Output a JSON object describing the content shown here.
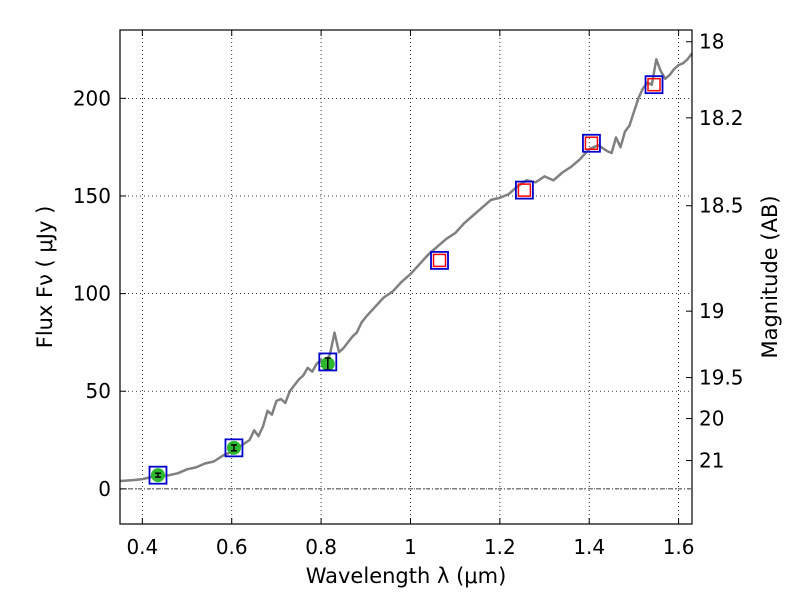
{
  "chart_data": {
    "type": "line",
    "xlabel": "Wavelength  λ (μm)",
    "ylabel": "Flux  Fν  ( μJy )",
    "y2label": "Magnitude (AB)",
    "xlim": [
      0.35,
      1.63
    ],
    "ylim": [
      -18,
      235
    ],
    "xticks": [
      0.4,
      0.6,
      0.8,
      1.0,
      1.2,
      1.4,
      1.6
    ],
    "xtick_labels": [
      "0.4",
      "0.6",
      "0.8",
      "1",
      "1.2",
      "1.4",
      "1.6"
    ],
    "yticks": [
      0,
      50,
      100,
      150,
      200
    ],
    "ytick_labels": [
      "0",
      "50",
      "100",
      "150",
      "200"
    ],
    "y2ticks": [
      {
        "label": "18",
        "flux": 229
      },
      {
        "label": "18.2",
        "flux": 190
      },
      {
        "label": "18.5",
        "flux": 145
      },
      {
        "label": "19",
        "flux": 91
      },
      {
        "label": "19.5",
        "flux": 57
      },
      {
        "label": "20",
        "flux": 36
      },
      {
        "label": "21",
        "flux": 14.5
      }
    ],
    "grid": true,
    "zero_line": true,
    "spectrum": {
      "color": "#808080",
      "x": [
        0.35,
        0.38,
        0.4,
        0.42,
        0.44,
        0.46,
        0.48,
        0.5,
        0.52,
        0.54,
        0.56,
        0.58,
        0.6,
        0.62,
        0.64,
        0.65,
        0.66,
        0.67,
        0.68,
        0.69,
        0.7,
        0.71,
        0.72,
        0.73,
        0.74,
        0.75,
        0.76,
        0.77,
        0.78,
        0.79,
        0.8,
        0.81,
        0.82,
        0.83,
        0.84,
        0.85,
        0.86,
        0.87,
        0.88,
        0.89,
        0.9,
        0.92,
        0.94,
        0.96,
        0.98,
        1.0,
        1.02,
        1.04,
        1.06,
        1.08,
        1.1,
        1.12,
        1.14,
        1.16,
        1.18,
        1.2,
        1.22,
        1.24,
        1.26,
        1.28,
        1.3,
        1.32,
        1.34,
        1.36,
        1.38,
        1.4,
        1.42,
        1.44,
        1.45,
        1.46,
        1.47,
        1.48,
        1.49,
        1.5,
        1.51,
        1.52,
        1.53,
        1.54,
        1.55,
        1.56,
        1.57,
        1.58,
        1.59,
        1.6,
        1.61,
        1.62,
        1.63
      ],
      "y": [
        4,
        4.5,
        5,
        6,
        6.5,
        7,
        8,
        10,
        11,
        13,
        14,
        17,
        19,
        22,
        25,
        30,
        27,
        32,
        40,
        38,
        45,
        46,
        44,
        50,
        53,
        56,
        58,
        62,
        60,
        64,
        66,
        65,
        69,
        80,
        70,
        72,
        75,
        78,
        80,
        85,
        88,
        93,
        98,
        101,
        106,
        110,
        115,
        120,
        124,
        128,
        131,
        136,
        140,
        144,
        148,
        149,
        151,
        155,
        158,
        157,
        160,
        158,
        162,
        165,
        169,
        174,
        176,
        173,
        172,
        180,
        175,
        183,
        186,
        193,
        200,
        205,
        208,
        207,
        220,
        214,
        210,
        212,
        215,
        217,
        218,
        220,
        223
      ]
    },
    "photometry_points": {
      "color": "#2db82d",
      "x": [
        0.435,
        0.605,
        0.815
      ],
      "y": [
        7,
        21,
        64
      ],
      "yerr": [
        1,
        1.5,
        3
      ]
    },
    "model_points": {
      "color": "#ff0000",
      "x": [
        1.065,
        1.255,
        1.405,
        1.545
      ],
      "y": [
        117,
        153,
        177,
        207
      ]
    },
    "synthetic_points": {
      "color": "#0000cc",
      "x": [
        0.435,
        0.605,
        0.815,
        1.065,
        1.255,
        1.405,
        1.545
      ],
      "y": [
        7,
        21,
        65,
        117,
        153,
        177,
        207
      ]
    }
  }
}
